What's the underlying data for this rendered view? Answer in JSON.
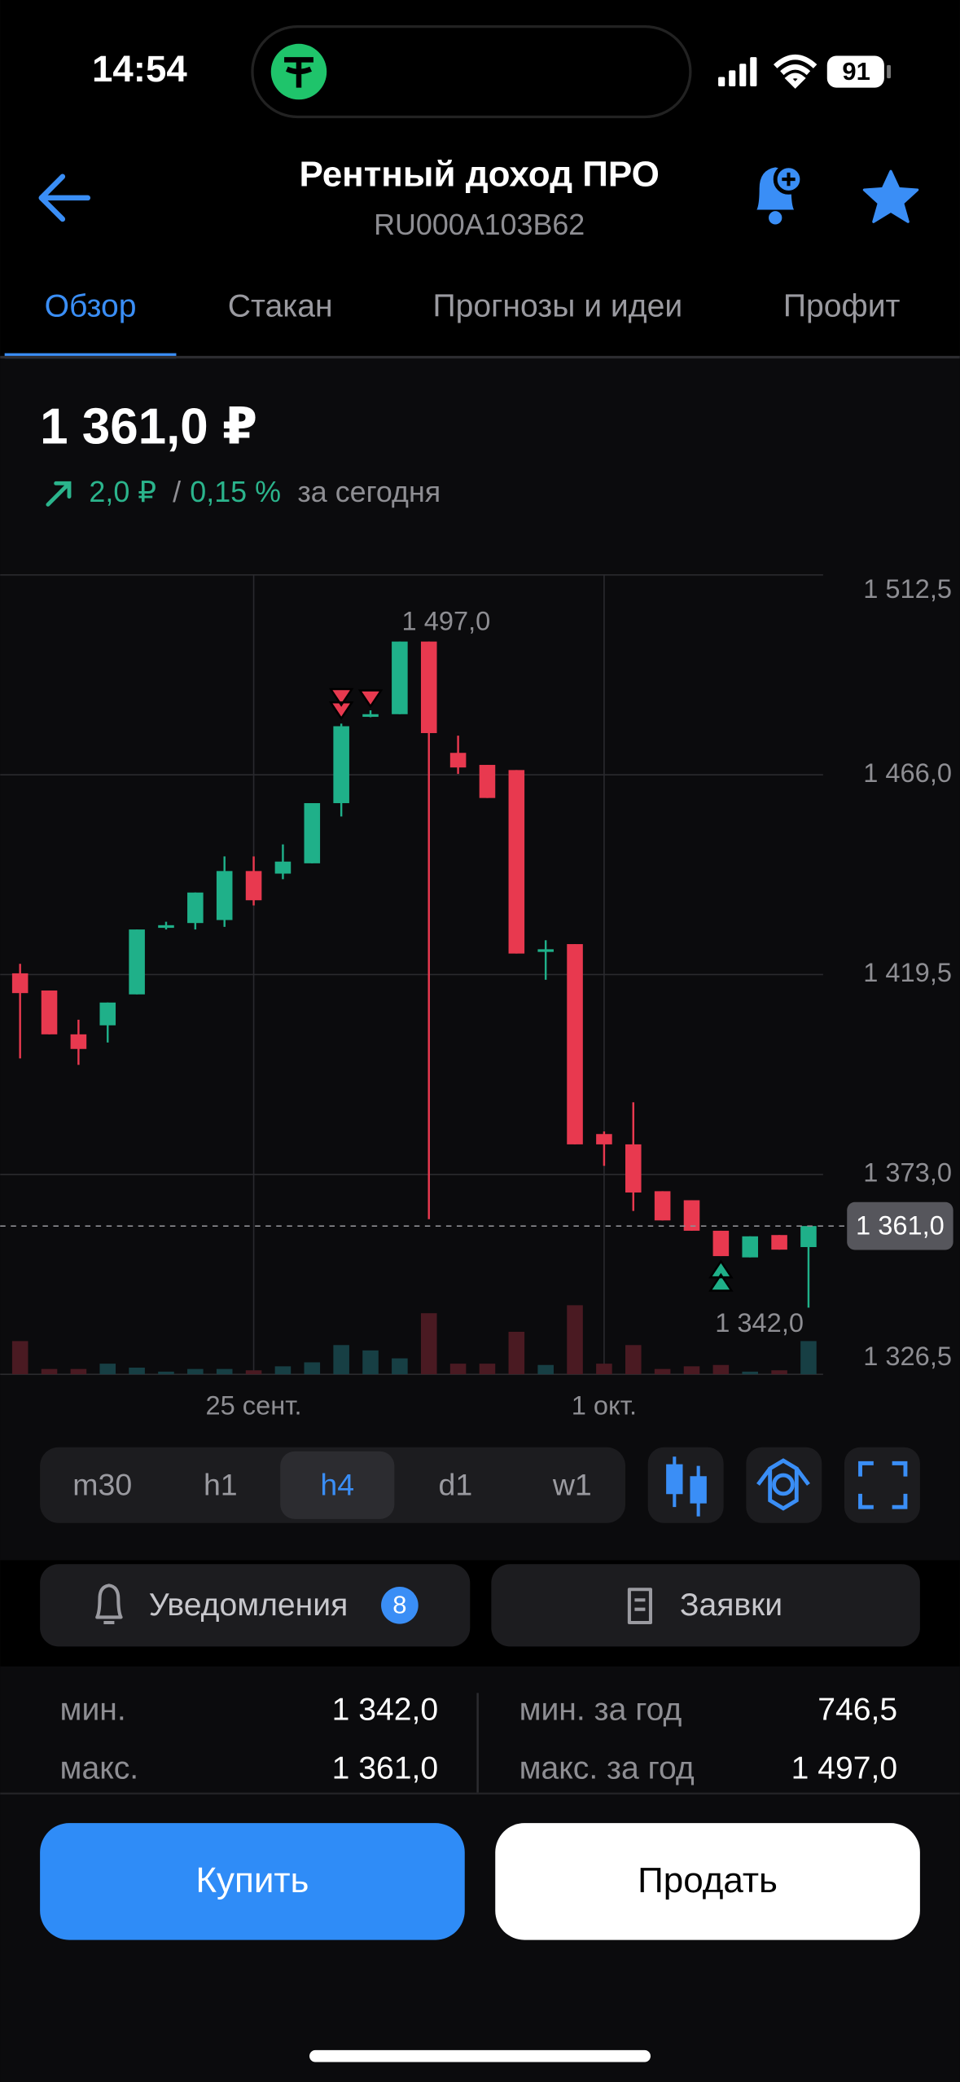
{
  "status_bar": {
    "time": "14:54",
    "battery": "91"
  },
  "header": {
    "title": "Рентный доход ПРО",
    "subtitle": "RU000A103B62"
  },
  "tabs": {
    "items": [
      "Обзор",
      "Стакан",
      "Прогнозы и идеи",
      "Профит"
    ],
    "active": 0
  },
  "quote": {
    "price": "1 361,0 ₽",
    "change": "2,0 ₽",
    "separator": "/",
    "change_percent": "0,15 %",
    "period": "за сегодня"
  },
  "chart": {
    "type": "candlestick",
    "categories": [
      null,
      null,
      null,
      null,
      null,
      null,
      null,
      null,
      "25 сент.",
      null,
      null,
      null,
      null,
      null,
      null,
      null,
      null,
      null,
      null,
      null,
      "1 окт.",
      null,
      null,
      null,
      null,
      null,
      null,
      null
    ],
    "open": [
      1419.8,
      1415.8,
      1405.6,
      1407.7,
      1414.9,
      1430.4,
      1431.5,
      1432.2,
      1443.6,
      1443.0,
      1445.4,
      1459.4,
      1479.7,
      1480.1,
      1497.0,
      1471.1,
      1468.3,
      1467.1,
      1424.8,
      1426.6,
      1382.4,
      1380.0,
      1369.1,
      1367.0,
      1359.9,
      1353.7,
      1358.9,
      1356.1
    ],
    "high": [
      1422.0,
      1415.8,
      1409.0,
      1413.0,
      1430.0,
      1431.8,
      1438.6,
      1447.0,
      1447.0,
      1449.8,
      1459.4,
      1477.9,
      1481.0,
      1497.0,
      1497.0,
      1475.1,
      1468.3,
      1467.1,
      1427.5,
      1426.6,
      1383.0,
      1389.8,
      1369.1,
      1367.0,
      1359.9,
      1358.6,
      1358.9,
      1361.0
    ],
    "low": [
      1400.0,
      1405.6,
      1398.5,
      1403.7,
      1414.9,
      1430.0,
      1430.0,
      1430.6,
      1435.6,
      1441.7,
      1445.4,
      1456.3,
      1479.4,
      1480.1,
      1362.6,
      1466.2,
      1460.6,
      1424.4,
      1418.3,
      1380.0,
      1375.0,
      1364.5,
      1362.3,
      1359.9,
      1354.0,
      1353.7,
      1355.5,
      1342.0
    ],
    "close": [
      1415.2,
      1405.6,
      1402.2,
      1413.0,
      1430.0,
      1431.0,
      1438.6,
      1443.6,
      1436.8,
      1445.8,
      1459.4,
      1477.3,
      1480.1,
      1497.0,
      1475.7,
      1467.7,
      1460.6,
      1424.4,
      1425.4,
      1380.0,
      1380.0,
      1368.8,
      1362.3,
      1359.9,
      1354.0,
      1358.6,
      1355.5,
      1361.0
    ],
    "volume": [
      25,
      4,
      4,
      8,
      5,
      2,
      4,
      4,
      3,
      6,
      9,
      22,
      18,
      12,
      46,
      8,
      8,
      32,
      7,
      52,
      8,
      22,
      4,
      6,
      7,
      2,
      3,
      25
    ],
    "up_color": "#1fb089",
    "down_color": "#e8394f",
    "up_volume_color": "#173f44",
    "down_volume_color": "#4a1a22",
    "ylim": [
      1326.5,
      1512.5
    ],
    "yticks": [
      {
        "value": 1512.5,
        "label": "1 512,5"
      },
      {
        "value": 1466.0,
        "label": "1 466,0"
      },
      {
        "value": 1419.5,
        "label": "1 419,5"
      },
      {
        "value": 1373.0,
        "label": "1 373,0"
      },
      {
        "value": 1326.5,
        "label": "1 326,5"
      }
    ],
    "grid": true,
    "annotations": [
      {
        "value": 1497.0,
        "label": "1 497,0"
      },
      {
        "value": 1342.0,
        "label": "1 342,0"
      }
    ],
    "last_price": {
      "value": 1361.0,
      "label": "1 361,0"
    }
  },
  "timeframes": {
    "items": [
      "m30",
      "h1",
      "h4",
      "d1",
      "w1"
    ],
    "active": 2
  },
  "actions": {
    "notifications": "Уведомления",
    "notifications_count": "8",
    "orders": "Заявки"
  },
  "stats": {
    "left": [
      {
        "label": "мин.",
        "value": "1 342,0"
      },
      {
        "label": "макс.",
        "value": "1 361,0"
      }
    ],
    "right": [
      {
        "label": "мин. за год",
        "value": "746,5"
      },
      {
        "label": "макс. за год",
        "value": "1 497,0"
      }
    ]
  },
  "buttons": {
    "buy": "Купить",
    "sell": "Продать"
  }
}
